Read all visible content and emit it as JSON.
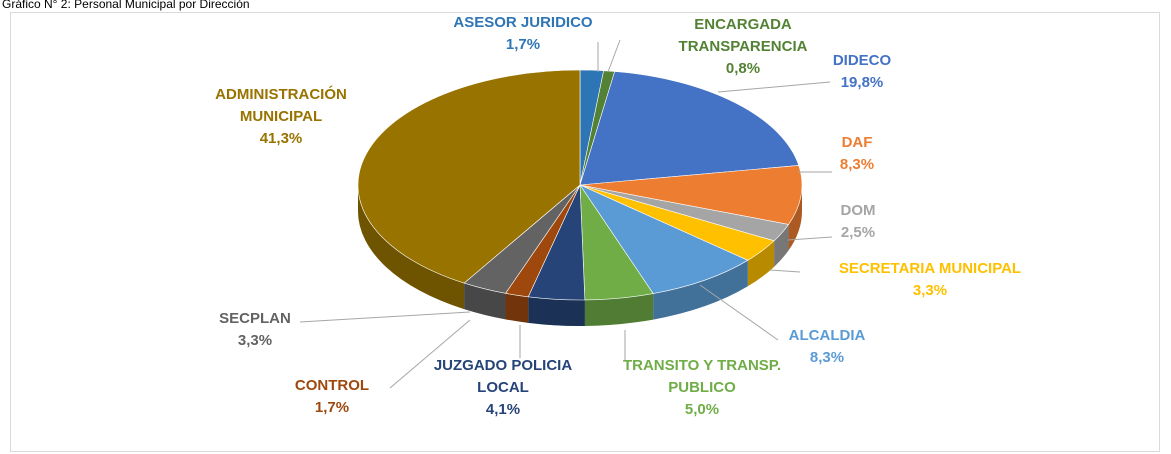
{
  "chart_data": {
    "type": "pie",
    "title": "Gráfico N° 2: Personal Municipal por Dirección",
    "categories": [
      "ASESOR JURIDICO",
      "ENCARGADA TRANSPARENCIA",
      "DIDECO",
      "DAF",
      "DOM",
      "SECRETARIA MUNICIPAL",
      "ALCALDIA",
      "TRANSITO Y TRANSP. PUBLICO",
      "JUZGADO POLICIA LOCAL",
      "CONTROL",
      "SECPLAN",
      "ADMINISTRACIÓN MUNICIPAL"
    ],
    "values": [
      1.7,
      0.8,
      19.8,
      8.3,
      2.5,
      3.3,
      8.3,
      5.0,
      4.1,
      1.7,
      3.3,
      41.3
    ],
    "value_labels": [
      "1,7%",
      "0,8%",
      "19,8%",
      "8,3%",
      "2,5%",
      "3,3%",
      "8,3%",
      "5,0%",
      "4,1%",
      "1,7%",
      "3,3%",
      "41,3%"
    ],
    "colors": [
      "#2e75b6",
      "#548235",
      "#4472c4",
      "#ed7d31",
      "#a5a5a5",
      "#ffc000",
      "#5b9bd5",
      "#70ad47",
      "#264478",
      "#9e480e",
      "#636363",
      "#997300"
    ]
  }
}
